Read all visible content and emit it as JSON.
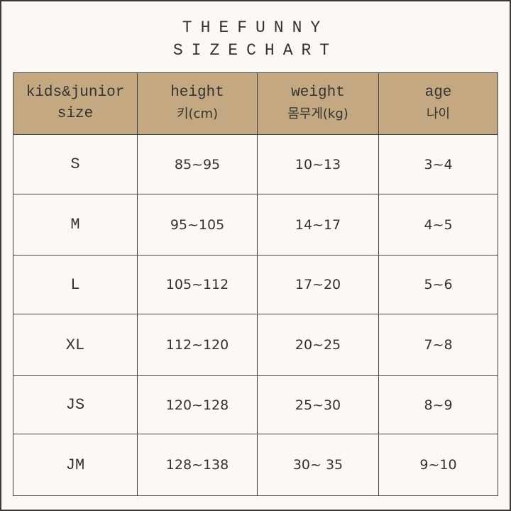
{
  "title": {
    "line1": "THEFUNNY",
    "line2": "SIZECHART"
  },
  "colors": {
    "header_bg": "#c4a882",
    "background": "#fcf8f3",
    "border": "#444444"
  },
  "headers": [
    {
      "en": "kids&junior",
      "kr": "size"
    },
    {
      "en": "height",
      "kr": "키(cm)"
    },
    {
      "en": "weight",
      "kr": "몸무게(kg)"
    },
    {
      "en": "age",
      "kr": "나이"
    }
  ],
  "rows": [
    {
      "size": "S",
      "height": "85~95",
      "weight": "10~13",
      "age": "3~4"
    },
    {
      "size": "M",
      "height": "95~105",
      "weight": "14~17",
      "age": "4~5"
    },
    {
      "size": "L",
      "height": "105~112",
      "weight": "17~20",
      "age": "5~6"
    },
    {
      "size": "XL",
      "height": "112~120",
      "weight": "20~25",
      "age": "7~8"
    },
    {
      "size": "JS",
      "height": "120~128",
      "weight": "25~30",
      "age": "8~9"
    },
    {
      "size": "JM",
      "height": "128~138",
      "weight": "30~ 35",
      "age": "9~10"
    }
  ]
}
